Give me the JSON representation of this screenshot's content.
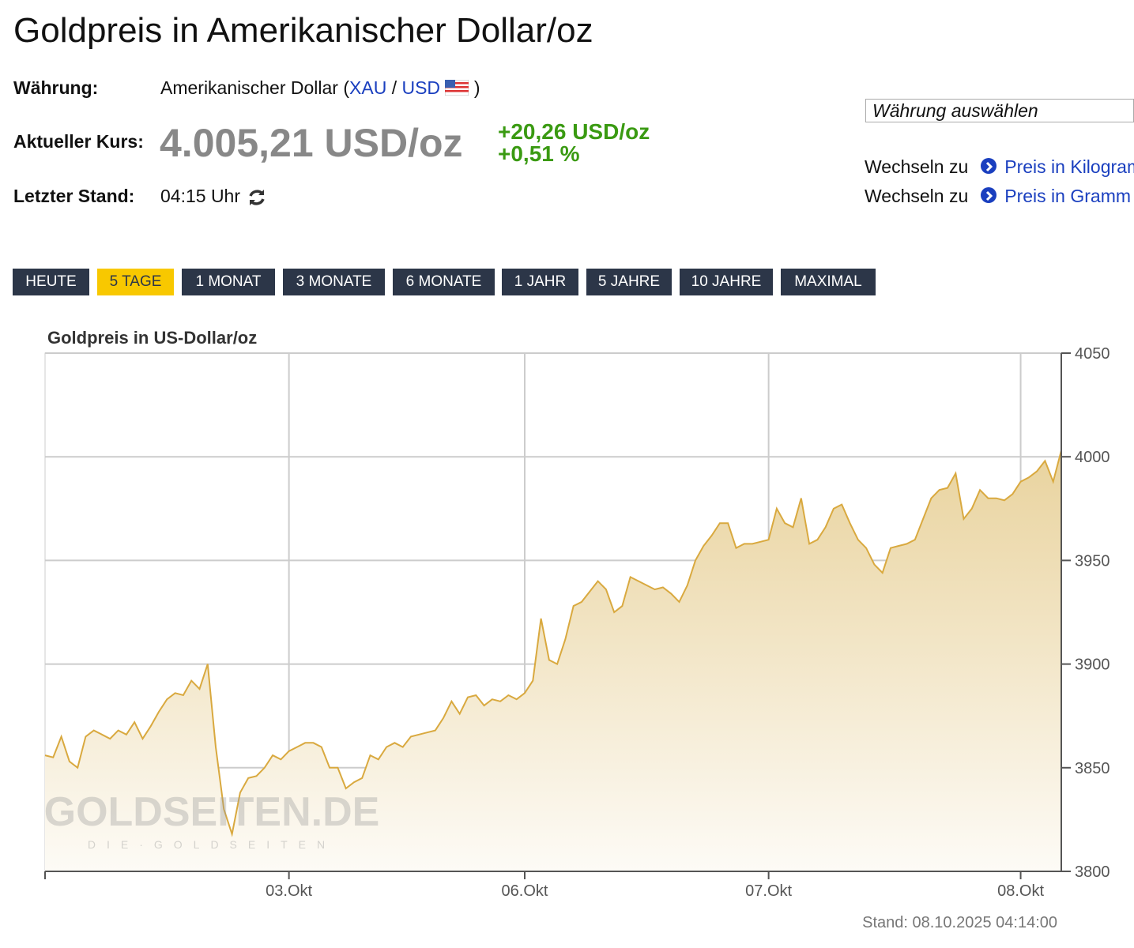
{
  "header": {
    "title": "Goldpreis in Amerikanischer Dollar/oz"
  },
  "info": {
    "currency_label": "Währung:",
    "currency_prefix": "Amerikanischer Dollar (",
    "currency_base": "XAU",
    "currency_separator": "/",
    "currency_quote": "USD",
    "currency_suffix": ")",
    "price_label": "Aktueller Kurs:",
    "price": "4.005,21 USD/oz",
    "change_abs": "+20,26 USD/oz",
    "change_pct": "+0,51 %",
    "time_label": "Letzter Stand:",
    "time": "04:15 Uhr"
  },
  "sidebar": {
    "select": "Währung auswählen",
    "links": [
      {
        "prefix": "Wechseln zu",
        "label": "Preis in Kilogramm"
      },
      {
        "prefix": "Wechseln zu",
        "label": "Preis in Gramm"
      }
    ]
  },
  "tabs": {
    "items": [
      "HEUTE",
      "5 TAGE",
      "1 MONAT",
      "3 MONATE",
      "6 MONATE",
      "1 JAHR",
      "5 JAHRE",
      "10 JAHRE",
      "MAXIMAL"
    ],
    "active": 1
  },
  "chart_data": {
    "type": "area",
    "title": "Goldpreis in US-Dollar/oz",
    "color": "#d9a93f",
    "grid": true,
    "watermark": "GOLDSEITEN.DE",
    "watermark_sub": "DIE·GOLDSEITEN",
    "footer": "Stand: 08.10.2025 04:14:00",
    "categories": [
      null,
      null,
      null,
      null,
      null,
      null,
      null,
      null,
      null,
      null,
      null,
      null,
      null,
      null,
      null,
      null,
      null,
      null,
      null,
      null,
      null,
      null,
      null,
      null,
      null,
      null,
      null,
      null,
      null,
      null,
      "03.Okt",
      null,
      null,
      null,
      null,
      null,
      null,
      null,
      null,
      null,
      null,
      null,
      null,
      null,
      null,
      null,
      null,
      null,
      null,
      null,
      null,
      null,
      null,
      null,
      null,
      null,
      null,
      null,
      null,
      "06.Okt",
      null,
      null,
      null,
      null,
      null,
      null,
      null,
      null,
      null,
      null,
      null,
      null,
      null,
      null,
      null,
      null,
      null,
      null,
      null,
      null,
      null,
      null,
      null,
      null,
      null,
      null,
      null,
      null,
      null,
      "07.Okt",
      null,
      null,
      null,
      null,
      null,
      null,
      null,
      null,
      null,
      null,
      null,
      null,
      null,
      null,
      null,
      null,
      null,
      null,
      null,
      null,
      null,
      null,
      null,
      null,
      null,
      null,
      null,
      null,
      null,
      null,
      "08.Okt",
      null,
      null,
      null,
      null,
      null
    ],
    "values": [
      3856,
      3855,
      3865,
      3853,
      3850,
      3865,
      3868,
      3866,
      3864,
      3868,
      3866,
      3872,
      3864,
      3870,
      3877,
      3883,
      3886,
      3885,
      3892,
      3888,
      3900,
      3860,
      3830,
      3818,
      3838,
      3845,
      3846,
      3850,
      3856,
      3854,
      3858,
      3860,
      3862,
      3862,
      3860,
      3850,
      3850,
      3840,
      3843,
      3845,
      3856,
      3854,
      3860,
      3862,
      3860,
      3865,
      3866,
      3867,
      3868,
      3874,
      3882,
      3876,
      3884,
      3885,
      3880,
      3883,
      3882,
      3885,
      3883,
      3886,
      3892,
      3922,
      3902,
      3900,
      3912,
      3928,
      3930,
      3935,
      3940,
      3936,
      3925,
      3928,
      3942,
      3940,
      3938,
      3936,
      3937,
      3934,
      3930,
      3938,
      3950,
      3957,
      3962,
      3968,
      3968,
      3956,
      3958,
      3958,
      3959,
      3960,
      3975,
      3968,
      3966,
      3980,
      3958,
      3960,
      3966,
      3975,
      3977,
      3968,
      3960,
      3956,
      3948,
      3944,
      3956,
      3957,
      3958,
      3960,
      3970,
      3980,
      3984,
      3985,
      3992,
      3970,
      3975,
      3984,
      3980,
      3980,
      3979,
      3982,
      3988,
      3990,
      3993,
      3998,
      3988,
      4003
    ],
    "ylim": [
      3800,
      4050
    ],
    "yticks": [
      3800,
      3850,
      3900,
      3950,
      4000,
      4050
    ]
  }
}
